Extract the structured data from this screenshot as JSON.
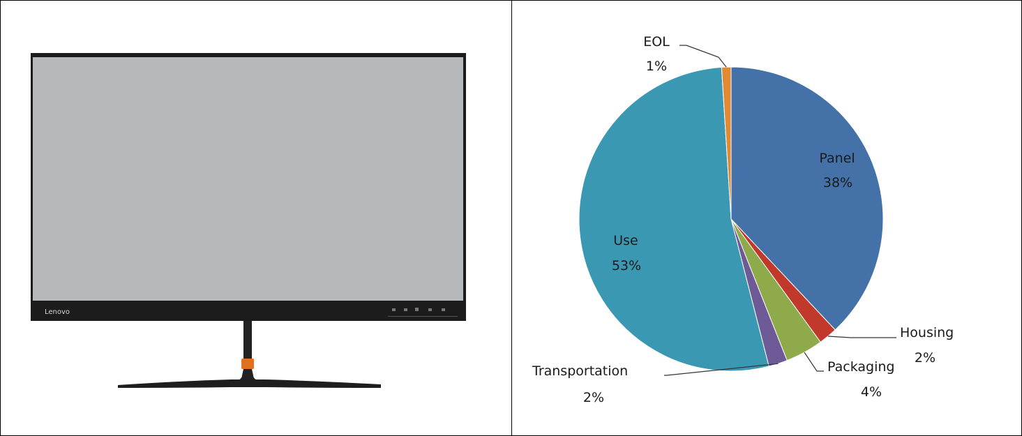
{
  "product": {
    "brand_logo_text": "Lenovo",
    "colors": {
      "screen": "#b7b8ba",
      "bezel": "#1c1c1c",
      "stand_accent": "#e2701f",
      "stand": "#222222"
    }
  },
  "chart_data": {
    "type": "pie",
    "title": "",
    "slices": [
      {
        "name": "Panel",
        "value": 38,
        "label": "38%",
        "color": "#4472a8"
      },
      {
        "name": "Housing",
        "value": 2,
        "label": "2%",
        "color": "#c0392b"
      },
      {
        "name": "Packaging",
        "value": 4,
        "label": "4%",
        "color": "#8faa4a"
      },
      {
        "name": "Transportation",
        "value": 2,
        "label": "2%",
        "color": "#6f5a98"
      },
      {
        "name": "Use",
        "value": 53,
        "label": "53%",
        "color": "#3a98b2"
      },
      {
        "name": "EOL",
        "value": 1,
        "label": "1%",
        "color": "#e08a33"
      }
    ],
    "start_angle_deg": 0,
    "direction": "clockwise",
    "legend": "none"
  }
}
